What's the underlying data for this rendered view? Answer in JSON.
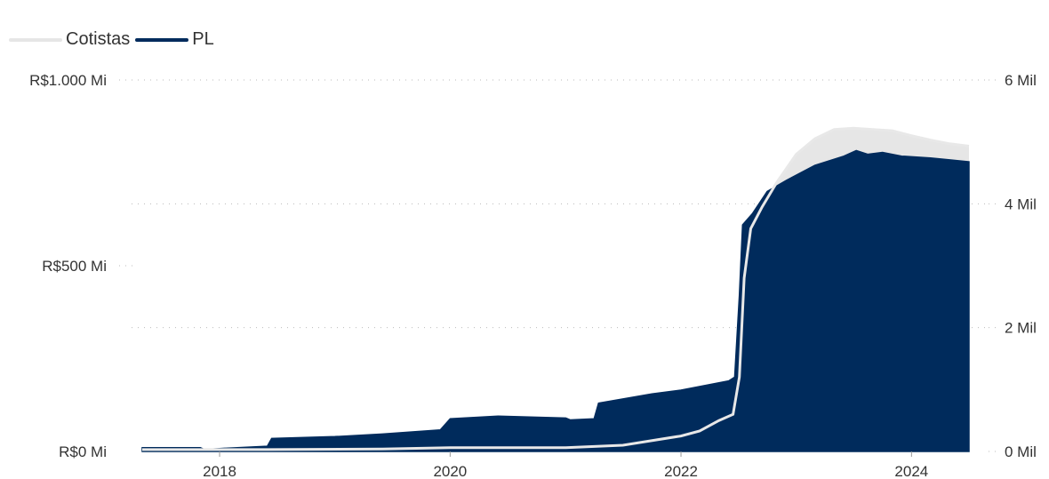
{
  "legend": {
    "items": [
      {
        "label": "Cotistas",
        "color": "#e6e6e6"
      },
      {
        "label": "PL",
        "color": "#002b5c"
      }
    ]
  },
  "chart_data": {
    "type": "area",
    "x_axis": {
      "type": "date",
      "ticks": [
        "2018",
        "2020",
        "2022",
        "2024"
      ],
      "range": [
        "2017-05",
        "2024-07"
      ]
    },
    "y_left": {
      "ticks": [
        "R$0 Mi",
        "R$500 Mi",
        "R$1.000 Mi"
      ],
      "range": [
        0,
        1000
      ],
      "unit": "R$ Mi"
    },
    "y_right": {
      "ticks": [
        "0 Mil",
        "2 Mil",
        "4 Mil",
        "6 Mil"
      ],
      "range": [
        0,
        6
      ],
      "unit": "Mil"
    },
    "grid": true,
    "legend_position": "top-left",
    "series": [
      {
        "name": "Cotistas",
        "axis": "right",
        "color": "#e6e6e6",
        "points": [
          [
            "2017-05-01",
            0.03
          ],
          [
            "2018-06-01",
            0.03
          ],
          [
            "2019-06-01",
            0.04
          ],
          [
            "2020-01-01",
            0.06
          ],
          [
            "2021-01-01",
            0.06
          ],
          [
            "2021-07-01",
            0.1
          ],
          [
            "2022-01-01",
            0.25
          ],
          [
            "2022-03-01",
            0.33
          ],
          [
            "2022-05-01",
            0.5
          ],
          [
            "2022-06-15",
            0.6
          ],
          [
            "2022-07-05",
            1.2
          ],
          [
            "2022-07-20",
            2.8
          ],
          [
            "2022-08-10",
            3.6
          ],
          [
            "2022-09-15",
            3.95
          ],
          [
            "2022-11-01",
            4.35
          ],
          [
            "2023-01-01",
            4.8
          ],
          [
            "2023-03-01",
            5.05
          ],
          [
            "2023-05-01",
            5.2
          ],
          [
            "2023-07-01",
            5.22
          ],
          [
            "2023-09-01",
            5.2
          ],
          [
            "2023-11-01",
            5.18
          ],
          [
            "2024-01-01",
            5.1
          ],
          [
            "2024-03-01",
            5.03
          ],
          [
            "2024-05-01",
            4.97
          ],
          [
            "2024-07-01",
            4.93
          ]
        ]
      },
      {
        "name": "PL",
        "axis": "left",
        "color": "#002b5c",
        "points": [
          [
            "2017-05-01",
            10
          ],
          [
            "2017-11-01",
            10
          ],
          [
            "2017-11-15",
            5
          ],
          [
            "2018-01-01",
            8
          ],
          [
            "2018-06-01",
            14
          ],
          [
            "2018-06-15",
            35
          ],
          [
            "2019-01-01",
            40
          ],
          [
            "2019-06-01",
            47
          ],
          [
            "2019-12-01",
            58
          ],
          [
            "2020-01-01",
            88
          ],
          [
            "2020-06-01",
            95
          ],
          [
            "2021-01-01",
            90
          ],
          [
            "2021-01-15",
            85
          ],
          [
            "2021-04-01",
            88
          ],
          [
            "2021-04-15",
            130
          ],
          [
            "2021-10-01",
            155
          ],
          [
            "2022-01-01",
            165
          ],
          [
            "2022-06-01",
            190
          ],
          [
            "2022-06-20",
            200
          ],
          [
            "2022-07-05",
            420
          ],
          [
            "2022-07-15",
            610
          ],
          [
            "2022-08-15",
            640
          ],
          [
            "2022-10-01",
            700
          ],
          [
            "2022-12-01",
            730
          ],
          [
            "2023-03-01",
            770
          ],
          [
            "2023-06-01",
            795
          ],
          [
            "2023-07-10",
            810
          ],
          [
            "2023-08-15",
            800
          ],
          [
            "2023-10-01",
            805
          ],
          [
            "2023-12-01",
            795
          ],
          [
            "2024-03-01",
            790
          ],
          [
            "2024-05-01",
            785
          ],
          [
            "2024-07-01",
            780
          ]
        ]
      }
    ]
  }
}
